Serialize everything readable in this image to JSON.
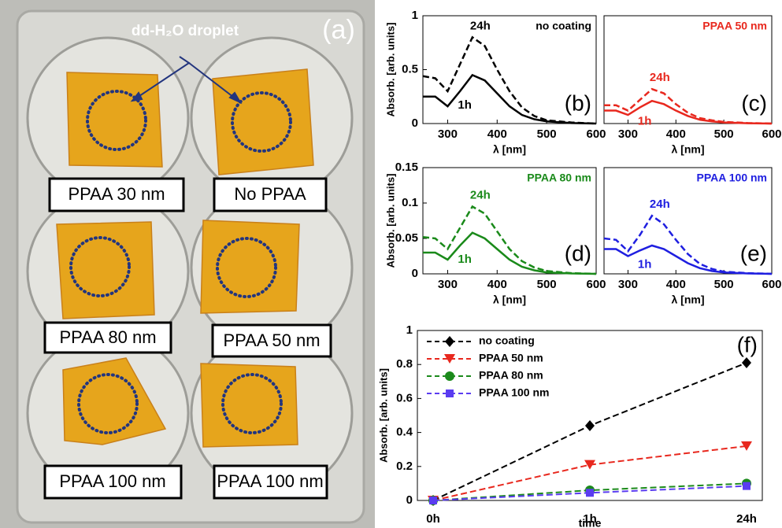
{
  "photo": {
    "panel_label": "(a)",
    "droplet_label": "dd-H₂O droplet",
    "wells": [
      "PPAA 30 nm",
      "No PPAA",
      "PPAA 80 nm",
      "PPAA 50 nm",
      "PPAA 100 nm",
      "PPAA 100 nm"
    ]
  },
  "chart_data": [
    {
      "type": "line",
      "title": "no coating",
      "panel_label": "(b)",
      "xlabel": "λ [nm]",
      "ylabel": "Absorb. [arb. units]",
      "x": [
        250,
        275,
        300,
        325,
        350,
        375,
        400,
        425,
        450,
        475,
        500,
        550,
        600
      ],
      "series": [
        {
          "name": "24h",
          "color": "#000000",
          "line_style": "dashed",
          "values": [
            0.44,
            0.42,
            0.3,
            0.55,
            0.8,
            0.72,
            0.5,
            0.3,
            0.15,
            0.07,
            0.03,
            0.01,
            0.0
          ]
        },
        {
          "name": "1h",
          "color": "#000000",
          "line_style": "solid",
          "values": [
            0.25,
            0.25,
            0.16,
            0.3,
            0.45,
            0.4,
            0.28,
            0.16,
            0.08,
            0.04,
            0.02,
            0.005,
            0.0
          ]
        }
      ],
      "xlim": [
        250,
        600
      ],
      "xticks": [
        300,
        400,
        500,
        600
      ],
      "ylim": [
        0,
        1
      ],
      "yticks": [
        0,
        0.5,
        1
      ]
    },
    {
      "type": "line",
      "title": "PPAA 50 nm",
      "panel_label": "(c)",
      "xlabel": "λ [nm]",
      "x": [
        250,
        275,
        300,
        325,
        350,
        375,
        400,
        425,
        450,
        475,
        500,
        550,
        600
      ],
      "series": [
        {
          "name": "24h",
          "color": "#e8281e",
          "line_style": "dashed",
          "values": [
            0.17,
            0.17,
            0.12,
            0.22,
            0.32,
            0.28,
            0.18,
            0.1,
            0.05,
            0.03,
            0.015,
            0.005,
            0.0
          ]
        },
        {
          "name": "1h",
          "color": "#e8281e",
          "line_style": "solid",
          "values": [
            0.12,
            0.12,
            0.08,
            0.15,
            0.21,
            0.18,
            0.12,
            0.07,
            0.035,
            0.02,
            0.01,
            0.003,
            0.0
          ]
        }
      ],
      "xlim": [
        250,
        600
      ],
      "xticks": [
        300,
        400,
        500,
        600
      ],
      "ylim": [
        0,
        1
      ]
    },
    {
      "type": "line",
      "title": "PPAA 80 nm",
      "panel_label": "(d)",
      "xlabel": "λ [nm]",
      "ylabel": "Absorb. [arb. units]",
      "x": [
        250,
        275,
        300,
        325,
        350,
        375,
        400,
        425,
        450,
        475,
        500,
        550,
        600
      ],
      "series": [
        {
          "name": "24h",
          "color": "#1a8a1a",
          "line_style": "dashed",
          "values": [
            0.052,
            0.05,
            0.035,
            0.065,
            0.095,
            0.085,
            0.06,
            0.035,
            0.018,
            0.009,
            0.004,
            0.001,
            0.0
          ]
        },
        {
          "name": "1h",
          "color": "#1a8a1a",
          "line_style": "solid",
          "values": [
            0.03,
            0.03,
            0.02,
            0.04,
            0.058,
            0.05,
            0.035,
            0.02,
            0.01,
            0.005,
            0.002,
            0.0005,
            0.0
          ]
        }
      ],
      "xlim": [
        250,
        600
      ],
      "xticks": [
        300,
        400,
        500,
        600
      ],
      "ylim": [
        0,
        0.15
      ],
      "yticks": [
        0,
        0.05,
        0.1,
        0.15
      ]
    },
    {
      "type": "line",
      "title": "PPAA 100 nm",
      "panel_label": "(e)",
      "xlabel": "λ [nm]",
      "x": [
        250,
        275,
        300,
        325,
        350,
        375,
        400,
        425,
        450,
        475,
        500,
        550,
        600
      ],
      "series": [
        {
          "name": "24h",
          "color": "#1f1fe0",
          "line_style": "dashed",
          "values": [
            0.05,
            0.048,
            0.032,
            0.055,
            0.082,
            0.07,
            0.048,
            0.028,
            0.014,
            0.007,
            0.003,
            0.001,
            0.0
          ]
        },
        {
          "name": "1h",
          "color": "#1f1fe0",
          "line_style": "solid",
          "values": [
            0.035,
            0.035,
            0.025,
            0.033,
            0.04,
            0.035,
            0.025,
            0.015,
            0.008,
            0.004,
            0.002,
            0.0005,
            0.0
          ]
        }
      ],
      "xlim": [
        250,
        600
      ],
      "xticks": [
        300,
        400,
        500,
        600
      ],
      "ylim": [
        0,
        0.15
      ]
    },
    {
      "type": "line",
      "panel_label": "(f)",
      "xlabel": "time",
      "ylabel": "Absorb. [arb. units]",
      "categories": [
        "0h",
        "1h",
        "24h"
      ],
      "series": [
        {
          "name": "no coating",
          "color": "#000000",
          "marker": "diamond",
          "line_style": "dashed",
          "values": [
            0,
            0.44,
            0.81
          ]
        },
        {
          "name": "PPAA 50 nm",
          "color": "#e8281e",
          "marker": "triangle",
          "line_style": "dashed",
          "values": [
            0,
            0.21,
            0.32
          ]
        },
        {
          "name": "PPAA 80 nm",
          "color": "#1c8a1c",
          "marker": "circle",
          "line_style": "dashed",
          "values": [
            0,
            0.06,
            0.1
          ]
        },
        {
          "name": "PPAA 100 nm",
          "color": "#5a3cf0",
          "marker": "square",
          "line_style": "dashed",
          "values": [
            0,
            0.045,
            0.085
          ]
        }
      ],
      "ylim": [
        0,
        1
      ],
      "yticks": [
        0,
        0.2,
        0.4,
        0.6,
        0.8,
        1
      ],
      "legend": "upper-left"
    }
  ]
}
